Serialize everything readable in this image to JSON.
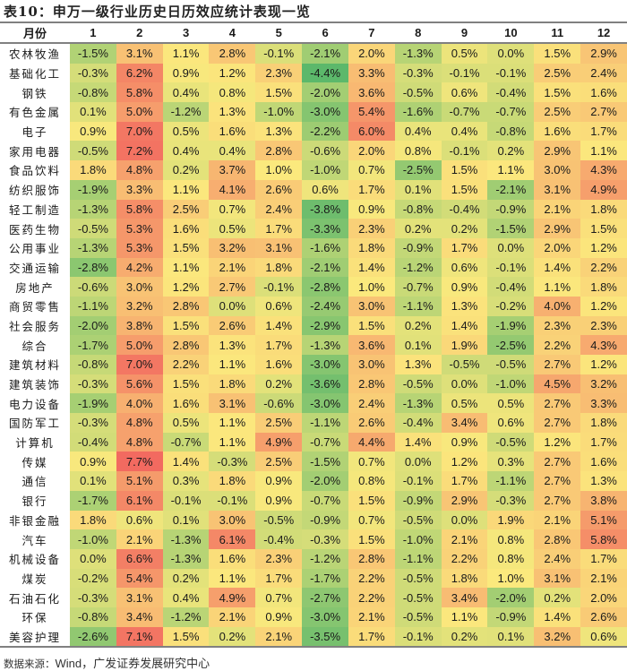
{
  "title": "表10：申万一级行业历史日历效应统计表现一览",
  "source": {
    "label": "数据来源：",
    "text": "Wind，广发证券发展研究中心"
  },
  "colors": {
    "low": "#5cb86b",
    "mid": "#fbe97d",
    "high": "#f26a60"
  },
  "chart_data": {
    "type": "heatmap",
    "title": "申万一级行业历史日历效应统计表现一览",
    "xlabel": "月份",
    "ylabel": "",
    "categories": [
      "1",
      "2",
      "3",
      "4",
      "5",
      "6",
      "7",
      "8",
      "9",
      "10",
      "11",
      "12"
    ],
    "rows": [
      {
        "industry": "农林牧渔",
        "values": [
          -1.5,
          3.1,
          1.1,
          2.8,
          -0.1,
          -2.1,
          2.0,
          -1.3,
          0.5,
          0.0,
          1.5,
          2.9
        ]
      },
      {
        "industry": "基础化工",
        "values": [
          -0.3,
          6.2,
          0.9,
          1.2,
          2.3,
          -4.4,
          3.3,
          -0.3,
          -0.1,
          -0.1,
          2.5,
          2.4
        ]
      },
      {
        "industry": "钢铁",
        "values": [
          -0.8,
          5.8,
          0.4,
          0.8,
          1.5,
          -2.0,
          3.6,
          -0.5,
          0.6,
          -0.4,
          1.5,
          1.6
        ]
      },
      {
        "industry": "有色金属",
        "values": [
          0.1,
          5.0,
          -1.2,
          1.3,
          -1.0,
          -3.0,
          5.4,
          -1.6,
          -0.7,
          -0.7,
          2.5,
          2.7
        ]
      },
      {
        "industry": "电子",
        "values": [
          0.9,
          7.0,
          0.5,
          1.6,
          1.3,
          -2.2,
          6.0,
          0.4,
          0.4,
          -0.8,
          1.6,
          1.7
        ]
      },
      {
        "industry": "家用电器",
        "values": [
          -0.5,
          7.2,
          0.4,
          0.4,
          2.8,
          -0.6,
          2.0,
          0.8,
          -0.1,
          0.2,
          2.9,
          1.1
        ]
      },
      {
        "industry": "食品饮料",
        "values": [
          1.8,
          4.8,
          0.2,
          3.7,
          1.0,
          -1.0,
          0.7,
          -2.5,
          1.5,
          1.1,
          3.0,
          4.3
        ]
      },
      {
        "industry": "纺织服饰",
        "values": [
          -1.9,
          3.3,
          1.1,
          4.1,
          2.6,
          0.6,
          1.7,
          0.1,
          1.5,
          -2.1,
          3.1,
          4.9
        ]
      },
      {
        "industry": "轻工制造",
        "values": [
          -1.3,
          5.8,
          2.5,
          0.7,
          2.4,
          -3.8,
          0.9,
          -0.8,
          -0.4,
          -0.9,
          2.1,
          1.8
        ]
      },
      {
        "industry": "医药生物",
        "values": [
          -0.5,
          5.3,
          1.6,
          0.5,
          1.7,
          -3.3,
          2.3,
          0.2,
          0.2,
          -1.5,
          2.9,
          1.5
        ]
      },
      {
        "industry": "公用事业",
        "values": [
          -1.3,
          5.3,
          1.5,
          3.2,
          3.1,
          -1.6,
          1.8,
          -0.9,
          1.7,
          0.0,
          2.0,
          1.2
        ]
      },
      {
        "industry": "交通运输",
        "values": [
          -2.8,
          4.2,
          1.1,
          2.1,
          1.8,
          -2.1,
          1.4,
          -1.2,
          0.6,
          -0.1,
          1.4,
          2.2
        ]
      },
      {
        "industry": "房地产",
        "values": [
          -0.6,
          3.0,
          1.2,
          2.7,
          -0.1,
          -2.8,
          1.0,
          -0.7,
          0.9,
          -0.4,
          1.1,
          1.8
        ]
      },
      {
        "industry": "商贸零售",
        "values": [
          -1.1,
          3.2,
          2.8,
          0.0,
          0.6,
          -2.4,
          3.0,
          -1.1,
          1.3,
          -0.2,
          4.0,
          1.2
        ]
      },
      {
        "industry": "社会服务",
        "values": [
          -2.0,
          3.8,
          1.5,
          2.6,
          1.4,
          -2.9,
          1.5,
          0.2,
          1.4,
          -1.9,
          2.3,
          2.3
        ]
      },
      {
        "industry": "综合",
        "values": [
          -1.7,
          5.0,
          2.8,
          1.3,
          1.7,
          -1.3,
          3.6,
          0.1,
          1.9,
          -2.5,
          2.2,
          4.3
        ]
      },
      {
        "industry": "建筑材料",
        "values": [
          -0.8,
          7.0,
          2.2,
          1.1,
          1.6,
          -3.0,
          3.0,
          1.3,
          -0.5,
          -0.5,
          2.7,
          1.2
        ]
      },
      {
        "industry": "建筑装饰",
        "values": [
          -0.3,
          5.6,
          1.5,
          1.8,
          0.2,
          -3.6,
          2.8,
          -0.5,
          0.0,
          -1.0,
          4.5,
          3.2
        ]
      },
      {
        "industry": "电力设备",
        "values": [
          -1.9,
          4.0,
          1.6,
          3.1,
          -0.6,
          -3.0,
          2.4,
          -1.3,
          0.5,
          0.5,
          2.7,
          3.3
        ]
      },
      {
        "industry": "国防军工",
        "values": [
          -0.3,
          4.8,
          0.5,
          1.1,
          2.5,
          -1.1,
          2.6,
          -0.4,
          3.4,
          0.6,
          2.7,
          1.8
        ]
      },
      {
        "industry": "计算机",
        "values": [
          -0.4,
          4.8,
          -0.7,
          1.1,
          4.9,
          -0.7,
          4.4,
          1.4,
          0.9,
          -0.5,
          1.2,
          1.7
        ]
      },
      {
        "industry": "传媒",
        "values": [
          0.9,
          7.7,
          1.4,
          -0.3,
          2.5,
          -1.5,
          0.7,
          0.0,
          1.2,
          0.3,
          2.7,
          1.6
        ]
      },
      {
        "industry": "通信",
        "values": [
          0.1,
          5.1,
          0.3,
          1.8,
          0.9,
          -2.0,
          0.8,
          -0.1,
          1.7,
          -1.1,
          2.7,
          1.3
        ]
      },
      {
        "industry": "银行",
        "values": [
          -1.7,
          6.1,
          -0.1,
          -0.1,
          0.9,
          -0.7,
          1.5,
          -0.9,
          2.9,
          -0.3,
          2.7,
          3.8
        ]
      },
      {
        "industry": "非银金融",
        "values": [
          1.8,
          0.6,
          0.1,
          3.0,
          -0.5,
          -0.9,
          0.7,
          -0.5,
          0.0,
          1.9,
          2.1,
          5.1
        ]
      },
      {
        "industry": "汽车",
        "values": [
          -1.0,
          2.1,
          -1.3,
          6.1,
          -0.4,
          -0.3,
          1.5,
          -1.0,
          2.1,
          0.8,
          2.8,
          5.8
        ]
      },
      {
        "industry": "机械设备",
        "values": [
          0.0,
          6.6,
          -1.3,
          1.6,
          2.3,
          -1.2,
          2.8,
          -1.1,
          2.2,
          0.8,
          2.4,
          1.7
        ]
      },
      {
        "industry": "煤炭",
        "values": [
          -0.2,
          5.4,
          0.2,
          1.1,
          1.7,
          -1.7,
          2.2,
          -0.5,
          1.8,
          1.0,
          3.1,
          2.1
        ]
      },
      {
        "industry": "石油石化",
        "values": [
          -0.3,
          3.1,
          0.4,
          4.9,
          0.7,
          -2.7,
          2.2,
          -0.5,
          3.4,
          -2.0,
          0.2,
          2.0
        ]
      },
      {
        "industry": "环保",
        "values": [
          -0.8,
          3.4,
          -1.2,
          2.1,
          0.9,
          -3.0,
          2.1,
          -0.5,
          1.1,
          -0.9,
          1.4,
          2.6
        ]
      },
      {
        "industry": "美容护理",
        "values": [
          -2.6,
          7.1,
          1.5,
          0.2,
          2.1,
          -3.5,
          1.7,
          -0.1,
          0.2,
          0.1,
          3.2,
          0.6
        ]
      }
    ],
    "unit": "%",
    "color_scale": "red(high)-yellow(mid)-green(low)"
  }
}
